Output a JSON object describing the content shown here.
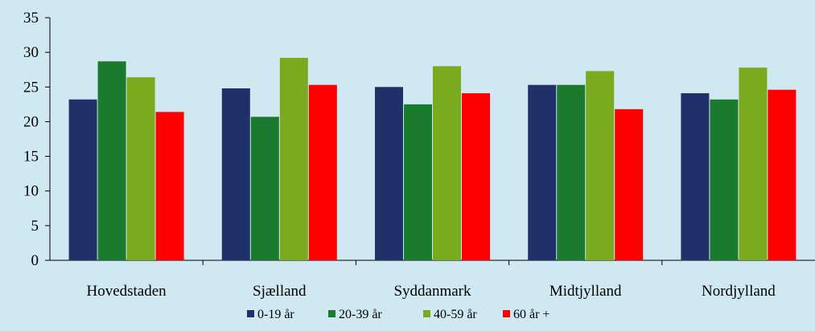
{
  "chart_data": {
    "type": "bar",
    "title": "",
    "xlabel": "",
    "ylabel": "",
    "categories": [
      "Hovedstaden",
      "Sjælland",
      "Syddanmark",
      "Midtjylland",
      "Nordjylland"
    ],
    "series": [
      {
        "name": "0-19 år",
        "color": "#1f3169",
        "values": [
          23.2,
          24.8,
          25.0,
          25.3,
          24.1
        ]
      },
      {
        "name": "20-39 år",
        "color": "#1a7a2e",
        "values": [
          28.7,
          20.7,
          22.5,
          25.3,
          23.2
        ]
      },
      {
        "name": "40-59 år",
        "color": "#7aab1f",
        "values": [
          26.4,
          29.2,
          28.0,
          27.3,
          27.8
        ]
      },
      {
        "name": "60 år +",
        "color": "#ff0000",
        "values": [
          21.4,
          25.3,
          24.1,
          21.8,
          24.6
        ]
      }
    ],
    "ylim": [
      0,
      35
    ],
    "yticks": [
      0,
      5,
      10,
      15,
      20,
      25,
      30,
      35
    ],
    "grid": false,
    "legend_position": "bottom-center"
  }
}
